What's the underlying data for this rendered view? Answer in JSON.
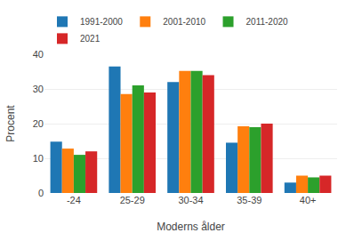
{
  "chart_data": {
    "type": "bar",
    "categories": [
      "-24",
      "25-29",
      "30-34",
      "35-39",
      "40+"
    ],
    "series": [
      {
        "name": "1991-2000",
        "values": [
          14.8,
          36.5,
          32.0,
          14.5,
          3.0
        ]
      },
      {
        "name": "2001-2010",
        "values": [
          12.8,
          28.5,
          35.2,
          19.2,
          5.0
        ]
      },
      {
        "name": "2011-2020",
        "values": [
          11.0,
          31.0,
          35.2,
          19.0,
          4.5
        ]
      },
      {
        "name": "2021",
        "values": [
          12.0,
          29.0,
          34.0,
          20.0,
          5.0
        ]
      }
    ],
    "xlabel": "Moderns ålder",
    "ylabel": "Procent",
    "ylim": [
      0,
      40
    ],
    "yticks": [
      0,
      10,
      20,
      30,
      40
    ],
    "grid": true,
    "legend": "top"
  }
}
